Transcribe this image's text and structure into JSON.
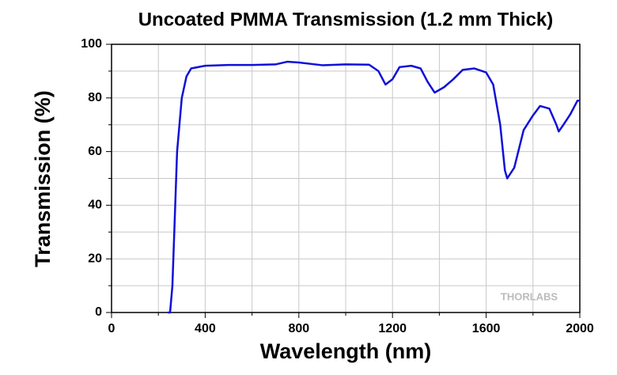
{
  "chart_data": {
    "type": "line",
    "title": "Uncoated PMMA Transmission (1.2 mm Thick)",
    "x_label": "Wavelength (nm)",
    "y_label": "Transmission (%)",
    "watermark": "THORLABS",
    "x": [
      240,
      250,
      260,
      280,
      300,
      320,
      340,
      400,
      500,
      600,
      700,
      750,
      800,
      900,
      1000,
      1100,
      1140,
      1170,
      1200,
      1230,
      1280,
      1320,
      1350,
      1380,
      1420,
      1460,
      1500,
      1550,
      1600,
      1630,
      1660,
      1680,
      1690,
      1720,
      1760,
      1800,
      1830,
      1870,
      1900,
      1910,
      1930,
      1960,
      1990,
      2000
    ],
    "series": [
      {
        "name": "Transmission",
        "color": "#1010d8",
        "values": [
          0,
          0,
          10,
          60,
          80,
          88,
          91,
          92,
          92.3,
          92.3,
          92.5,
          93.5,
          93.2,
          92.2,
          92.5,
          92.4,
          90,
          85,
          87,
          91.5,
          92,
          91,
          86,
          82,
          84,
          87,
          90.5,
          91,
          89.5,
          85,
          70,
          53,
          50,
          54,
          68,
          73.5,
          77,
          76,
          70,
          67.5,
          70,
          74,
          79,
          79
        ]
      }
    ],
    "xlim": [
      0,
      2000
    ],
    "xticks": [
      0,
      400,
      800,
      1200,
      1600,
      2000
    ],
    "xminorticks": [
      200,
      600,
      1000,
      1400,
      1800
    ],
    "ylim": [
      0,
      100
    ],
    "yticks": [
      0,
      20,
      40,
      60,
      80,
      100
    ],
    "yminorticks": [
      10,
      30,
      50,
      70,
      90
    ],
    "grid": true
  }
}
